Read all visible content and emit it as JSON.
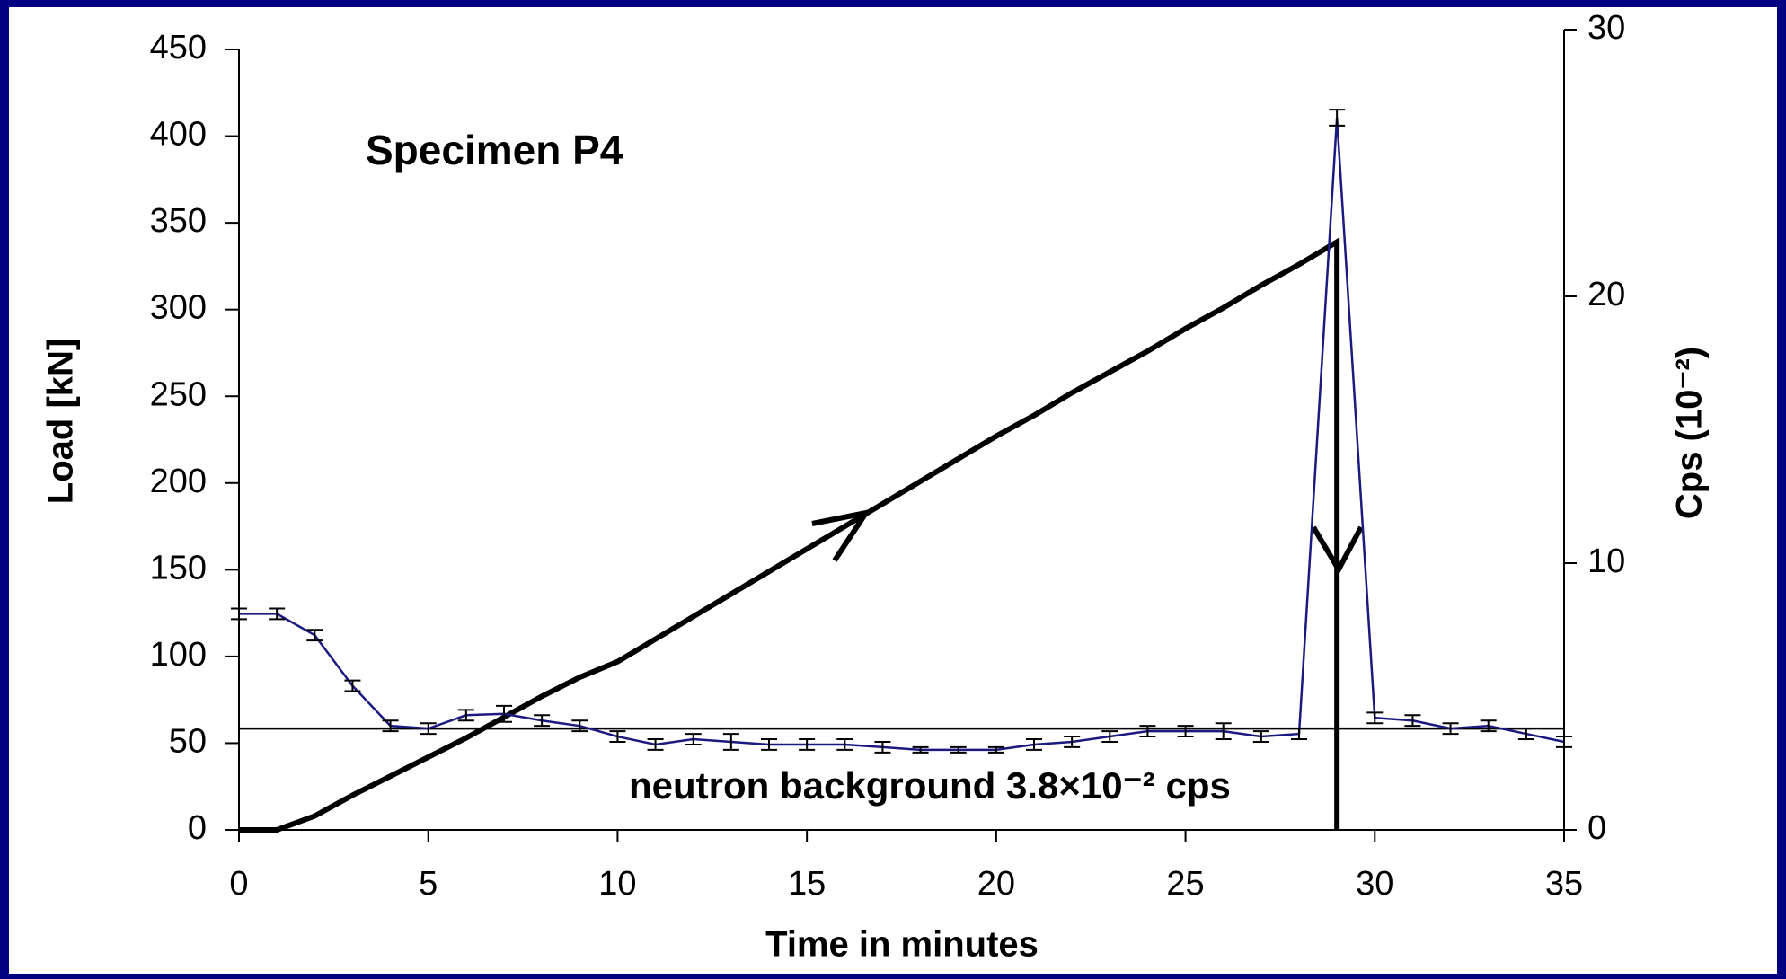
{
  "chart_data": {
    "type": "line",
    "title": "Specimen P4",
    "x_label": "Time in minutes",
    "y_label": "Load [kN]",
    "y2_label": "Cps (10⁻²)",
    "annotation": "neutron background 3.8×10⁻² cps",
    "xlim": [
      0,
      35
    ],
    "xticks": [
      0,
      5,
      10,
      15,
      20,
      25,
      30,
      35
    ],
    "ylim": [
      0,
      450
    ],
    "yticks": [
      0,
      50,
      100,
      150,
      200,
      250,
      300,
      350,
      400,
      450
    ],
    "y2lim": [
      0,
      30
    ],
    "y2ticks": [
      0,
      10,
      20,
      30
    ],
    "hlines": [
      {
        "value": 3.8,
        "axis": "y2",
        "color": "#000000"
      }
    ],
    "series": [
      {
        "color": "#000000",
        "x": [
          0,
          1,
          2,
          3,
          4,
          5,
          6,
          7,
          8,
          9,
          10,
          11,
          12,
          13,
          14,
          15,
          16,
          17,
          18,
          19,
          20,
          21,
          22,
          23,
          24,
          25,
          26,
          27,
          28,
          29,
          29
        ],
        "values": [
          0,
          0,
          8,
          20,
          31,
          42,
          53,
          65,
          77,
          88,
          97,
          110,
          123,
          136,
          149,
          162,
          175,
          188,
          201,
          214,
          227,
          239,
          252,
          264,
          276,
          289,
          301,
          314,
          326,
          339,
          0
        ]
      },
      {
        "color": "#1a1a80",
        "axis": "y2",
        "x": [
          0,
          1,
          2,
          3,
          4,
          5,
          6,
          7,
          8,
          9,
          10,
          11,
          12,
          13,
          14,
          15,
          16,
          17,
          18,
          19,
          20,
          21,
          22,
          23,
          24,
          25,
          26,
          27,
          28,
          29,
          30,
          31,
          32,
          33,
          34,
          35
        ],
        "values": [
          8.1,
          8.1,
          7.3,
          5.4,
          3.9,
          3.8,
          4.3,
          4.35,
          4.1,
          3.9,
          3.5,
          3.2,
          3.4,
          3.3,
          3.2,
          3.2,
          3.2,
          3.1,
          3.0,
          3.0,
          3.0,
          3.2,
          3.3,
          3.5,
          3.7,
          3.7,
          3.7,
          3.5,
          3.6,
          26.7,
          4.2,
          4.1,
          3.8,
          3.9,
          3.6,
          3.3
        ],
        "errors": [
          0.2,
          0.2,
          0.2,
          0.2,
          0.2,
          0.2,
          0.2,
          0.3,
          0.2,
          0.2,
          0.2,
          0.2,
          0.2,
          0.3,
          0.2,
          0.2,
          0.2,
          0.2,
          0.1,
          0.1,
          0.1,
          0.2,
          0.2,
          0.2,
          0.2,
          0.2,
          0.3,
          0.2,
          0.2,
          0.3,
          0.2,
          0.2,
          0.2,
          0.2,
          0.2,
          0.2
        ]
      }
    ]
  }
}
